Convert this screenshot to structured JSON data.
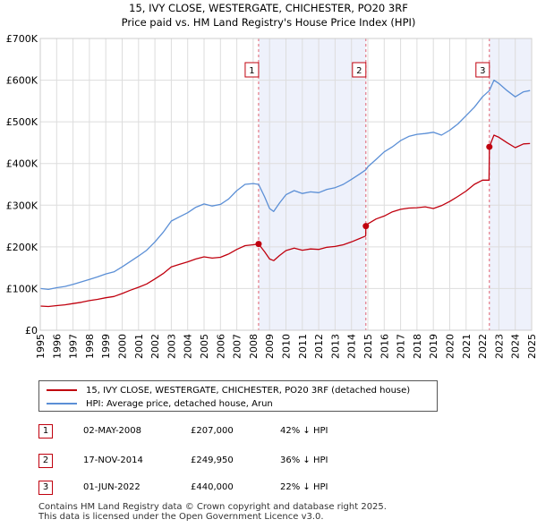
{
  "title_line1": "15, IVY CLOSE, WESTERGATE, CHICHESTER, PO20 3RF",
  "title_line2": "Price paid vs. HM Land Registry's House Price Index (HPI)",
  "legend": [
    {
      "label": "15, IVY CLOSE, WESTERGATE, CHICHESTER, PO20 3RF (detached house)",
      "color": "#c0000e"
    },
    {
      "label": "HPI: Average price, detached house, Arun",
      "color": "#5b8fd6"
    }
  ],
  "table": [
    {
      "num": "1",
      "date": "02-MAY-2008",
      "price": "£207,000",
      "hpi": "42% ↓ HPI"
    },
    {
      "num": "2",
      "date": "17-NOV-2014",
      "price": "£249,950",
      "hpi": "36% ↓ HPI"
    },
    {
      "num": "3",
      "date": "01-JUN-2022",
      "price": "£440,000",
      "hpi": "22% ↓ HPI"
    }
  ],
  "footer_line1": "Contains HM Land Registry data © Crown copyright and database right 2025.",
  "footer_line2": "This data is licensed under the Open Government Licence v3.0.",
  "chart_data": {
    "type": "line",
    "title": "15, IVY CLOSE, WESTERGATE, CHICHESTER, PO20 3RF",
    "subtitle": "Price paid vs. HM Land Registry's House Price Index (HPI)",
    "xlim": [
      1995,
      2025
    ],
    "ylim": [
      0,
      700000
    ],
    "yticks": [
      0,
      100000,
      200000,
      300000,
      400000,
      500000,
      600000,
      700000
    ],
    "ytick_labels": [
      "£0",
      "£100K",
      "£200K",
      "£300K",
      "£400K",
      "£500K",
      "£600K",
      "£700K"
    ],
    "xticks": [
      "1995",
      "1996",
      "1997",
      "1998",
      "1999",
      "2000",
      "2001",
      "2002",
      "2003",
      "2004",
      "2005",
      "2006",
      "2007",
      "2008",
      "2009",
      "2010",
      "2011",
      "2012",
      "2013",
      "2014",
      "2015",
      "2016",
      "2017",
      "2018",
      "2019",
      "2020",
      "2021",
      "2022",
      "2023",
      "2024",
      "2025"
    ],
    "grid": true,
    "series": [
      {
        "name": "HPI: Average price, detached house, Arun",
        "color": "#5b8fd6",
        "x": [
          1995.0,
          1995.5,
          1996.0,
          1996.5,
          1997.0,
          1997.5,
          1998.0,
          1998.5,
          1999.0,
          1999.5,
          2000.0,
          2000.5,
          2001.0,
          2001.5,
          2002.0,
          2002.5,
          2003.0,
          2003.5,
          2004.0,
          2004.5,
          2005.0,
          2005.5,
          2006.0,
          2006.5,
          2007.0,
          2007.5,
          2008.0,
          2008.33,
          2008.7,
          2009.0,
          2009.25,
          2009.6,
          2010.0,
          2010.5,
          2011.0,
          2011.5,
          2012.0,
          2012.5,
          2013.0,
          2013.5,
          2014.0,
          2014.5,
          2014.88,
          2015.0,
          2015.5,
          2016.0,
          2016.5,
          2017.0,
          2017.5,
          2018.0,
          2018.5,
          2019.0,
          2019.5,
          2020.0,
          2020.5,
          2021.0,
          2021.5,
          2022.0,
          2022.42,
          2022.7,
          2023.0,
          2023.5,
          2024.0,
          2024.5,
          2024.9
        ],
        "values": [
          100000,
          98000,
          102000,
          105000,
          110000,
          116000,
          122000,
          128000,
          135000,
          140000,
          152000,
          165000,
          178000,
          192000,
          212000,
          235000,
          262000,
          272000,
          282000,
          295000,
          303000,
          298000,
          302000,
          315000,
          335000,
          350000,
          352000,
          350000,
          320000,
          292000,
          285000,
          305000,
          325000,
          335000,
          328000,
          332000,
          330000,
          338000,
          342000,
          350000,
          362000,
          375000,
          385000,
          392000,
          410000,
          428000,
          440000,
          455000,
          465000,
          470000,
          472000,
          475000,
          468000,
          480000,
          495000,
          515000,
          535000,
          560000,
          575000,
          600000,
          592000,
          575000,
          560000,
          572000,
          575000
        ]
      },
      {
        "name": "15, IVY CLOSE, WESTERGATE, CHICHESTER, PO20 3RF (detached house)",
        "color": "#c0000e",
        "x": [
          1995.0,
          1995.5,
          1996.0,
          1996.5,
          1997.0,
          1997.5,
          1998.0,
          1998.5,
          1999.0,
          1999.5,
          2000.0,
          2000.5,
          2001.0,
          2001.5,
          2002.0,
          2002.5,
          2003.0,
          2003.5,
          2004.0,
          2004.5,
          2005.0,
          2005.5,
          2006.0,
          2006.5,
          2007.0,
          2007.5,
          2008.0,
          2008.33,
          2008.7,
          2009.0,
          2009.25,
          2009.6,
          2010.0,
          2010.5,
          2011.0,
          2011.5,
          2012.0,
          2012.5,
          2013.0,
          2013.5,
          2014.0,
          2014.5,
          2014.87,
          2014.88,
          2015.0,
          2015.5,
          2016.0,
          2016.5,
          2017.0,
          2017.5,
          2018.0,
          2018.5,
          2019.0,
          2019.5,
          2020.0,
          2020.5,
          2021.0,
          2021.5,
          2022.0,
          2022.4,
          2022.42,
          2022.7,
          2023.0,
          2023.5,
          2024.0,
          2024.5,
          2024.9
        ],
        "values": [
          58000,
          57000,
          59000,
          61000,
          64000,
          67000,
          71000,
          74000,
          78000,
          81000,
          88000,
          96000,
          103000,
          111000,
          123000,
          136000,
          152000,
          158000,
          164000,
          171000,
          176000,
          173000,
          175000,
          183000,
          194000,
          203000,
          205000,
          207000,
          188000,
          171000,
          167000,
          179000,
          191000,
          197000,
          192000,
          195000,
          194000,
          199000,
          201000,
          205000,
          212000,
          220000,
          226000,
          249950,
          255000,
          267000,
          274000,
          284000,
          290000,
          293000,
          294000,
          296000,
          292000,
          299000,
          309000,
          321000,
          334000,
          350000,
          360000,
          360000,
          440000,
          468000,
          463000,
          450000,
          438000,
          447000,
          448000
        ]
      }
    ],
    "sales": [
      {
        "label": "1",
        "x": 2008.33,
        "value": 207000
      },
      {
        "label": "2",
        "x": 2014.88,
        "value": 249950
      },
      {
        "label": "3",
        "x": 2022.42,
        "value": 440000
      }
    ],
    "shaded_ranges": [
      [
        2008.33,
        2014.88
      ],
      [
        2022.42,
        2024.95
      ]
    ]
  }
}
